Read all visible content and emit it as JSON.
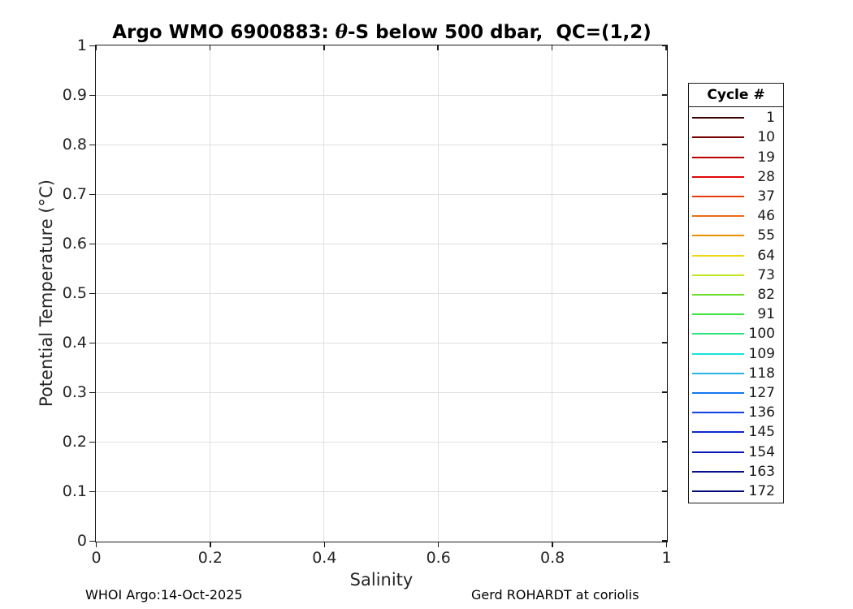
{
  "figure": {
    "title_prefix": "Argo WMO 6900883: ",
    "title_theta": "θ",
    "title_suffix": "-S below 500 dbar,  QC=(1,2)",
    "xlabel": "Salinity",
    "ylabel": "Potential Temperature (°C)",
    "footer_left": "WHOI Argo:14-Oct-2025",
    "footer_right": "Gerd ROHARDT at coriolis"
  },
  "legend": {
    "title": "Cycle #",
    "entries": [
      {
        "label": "1",
        "color": "#3b0000"
      },
      {
        "label": "10",
        "color": "#7a0000"
      },
      {
        "label": "19",
        "color": "#b80000"
      },
      {
        "label": "28",
        "color": "#e00505"
      },
      {
        "label": "37",
        "color": "#e83c0c"
      },
      {
        "label": "46",
        "color": "#ee6a12"
      },
      {
        "label": "55",
        "color": "#e89200"
      },
      {
        "label": "64",
        "color": "#f2d411"
      },
      {
        "label": "73",
        "color": "#bfe822"
      },
      {
        "label": "82",
        "color": "#6ede2d"
      },
      {
        "label": "91",
        "color": "#3ee43e"
      },
      {
        "label": "100",
        "color": "#2ae47d"
      },
      {
        "label": "109",
        "color": "#14e4dc"
      },
      {
        "label": "118",
        "color": "#28b4e8"
      },
      {
        "label": "127",
        "color": "#1278f0"
      },
      {
        "label": "136",
        "color": "#1242e4"
      },
      {
        "label": "145",
        "color": "#0a2ad0"
      },
      {
        "label": "154",
        "color": "#0619b8"
      },
      {
        "label": "163",
        "color": "#041090"
      },
      {
        "label": "172",
        "color": "#030c7a"
      }
    ]
  },
  "chart_data": {
    "type": "line",
    "title": "Argo WMO 6900883: θ-S below 500 dbar,  QC=(1,2)",
    "xlabel": "Salinity",
    "ylabel": "Potential Temperature (°C)",
    "xlim": [
      0,
      1
    ],
    "ylim": [
      0,
      1
    ],
    "xticks": [
      0,
      0.2,
      0.4,
      0.6,
      0.8,
      1
    ],
    "xtick_labels": [
      "0",
      "0.2",
      "0.4",
      "0.6",
      "0.8",
      "1"
    ],
    "yticks": [
      0,
      0.1,
      0.2,
      0.3,
      0.4,
      0.5,
      0.6,
      0.7,
      0.8,
      0.9,
      1
    ],
    "ytick_labels": [
      "0",
      "0.1",
      "0.2",
      "0.3",
      "0.4",
      "0.5",
      "0.6",
      "0.7",
      "0.8",
      "0.9",
      "1"
    ],
    "grid": true,
    "legend_position": "outside-right",
    "legend_title": "Cycle #",
    "series": [
      {
        "name": "1",
        "color": "#3b0000",
        "x": [],
        "y": []
      },
      {
        "name": "10",
        "color": "#7a0000",
        "x": [],
        "y": []
      },
      {
        "name": "19",
        "color": "#b80000",
        "x": [],
        "y": []
      },
      {
        "name": "28",
        "color": "#e00505",
        "x": [],
        "y": []
      },
      {
        "name": "37",
        "color": "#e83c0c",
        "x": [],
        "y": []
      },
      {
        "name": "46",
        "color": "#ee6a12",
        "x": [],
        "y": []
      },
      {
        "name": "55",
        "color": "#e89200",
        "x": [],
        "y": []
      },
      {
        "name": "64",
        "color": "#f2d411",
        "x": [],
        "y": []
      },
      {
        "name": "73",
        "color": "#bfe822",
        "x": [],
        "y": []
      },
      {
        "name": "82",
        "color": "#6ede2d",
        "x": [],
        "y": []
      },
      {
        "name": "91",
        "color": "#3ee43e",
        "x": [],
        "y": []
      },
      {
        "name": "100",
        "color": "#2ae47d",
        "x": [],
        "y": []
      },
      {
        "name": "109",
        "color": "#14e4dc",
        "x": [],
        "y": []
      },
      {
        "name": "118",
        "color": "#28b4e8",
        "x": [],
        "y": []
      },
      {
        "name": "127",
        "color": "#1278f0",
        "x": [],
        "y": []
      },
      {
        "name": "136",
        "color": "#1242e4",
        "x": [],
        "y": []
      },
      {
        "name": "145",
        "color": "#0a2ad0",
        "x": [],
        "y": []
      },
      {
        "name": "154",
        "color": "#0619b8",
        "x": [],
        "y": []
      },
      {
        "name": "163",
        "color": "#041090",
        "x": [],
        "y": []
      },
      {
        "name": "172",
        "color": "#030c7a",
        "x": [],
        "y": []
      }
    ],
    "note": "Axes are empty; no data points are plotted in the visible chart area."
  },
  "colors": {
    "axis_line": "#1a1a1a",
    "grid_line": "#e0e0e0",
    "tick_text": "#262626",
    "background": "#ffffff"
  }
}
